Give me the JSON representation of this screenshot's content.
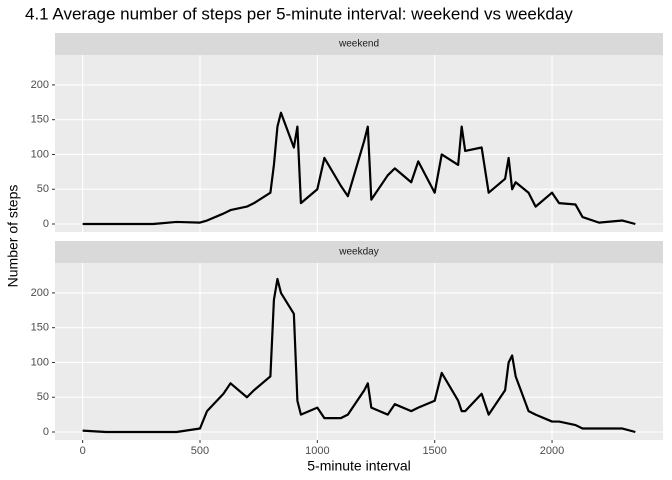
{
  "chart_data": {
    "type": "line",
    "title": "4.1 Average number of steps per 5-minute interval: weekend vs weekday",
    "x_label": "5-minute interval",
    "y_label": "Number of steps",
    "facet": true,
    "grid": true,
    "xlim": [
      -117.75,
      2472.75
    ],
    "xticks": [
      0,
      500,
      1000,
      1500,
      2000
    ],
    "ylim": [
      -11.5,
      243
    ],
    "yticks": [
      0,
      50,
      100,
      150,
      200
    ],
    "x": [
      0,
      100,
      200,
      300,
      400,
      500,
      530,
      600,
      630,
      700,
      730,
      800,
      815,
      830,
      845,
      900,
      915,
      930,
      1000,
      1030,
      1100,
      1130,
      1200,
      1215,
      1230,
      1300,
      1330,
      1400,
      1430,
      1500,
      1530,
      1600,
      1615,
      1630,
      1700,
      1730,
      1800,
      1815,
      1830,
      1845,
      1900,
      1930,
      2000,
      2030,
      2100,
      2130,
      2200,
      2300,
      2355
    ],
    "series": [
      {
        "name": "weekend",
        "color": "#000000",
        "values": [
          0,
          0,
          0,
          0,
          3,
          2,
          5,
          15,
          20,
          25,
          30,
          45,
          85,
          140,
          160,
          110,
          140,
          30,
          50,
          95,
          55,
          40,
          120,
          140,
          35,
          70,
          80,
          60,
          90,
          45,
          100,
          85,
          140,
          105,
          110,
          45,
          65,
          95,
          50,
          60,
          45,
          25,
          45,
          30,
          28,
          10,
          2,
          5,
          0
        ]
      },
      {
        "name": "weekday",
        "color": "#000000",
        "values": [
          2,
          0,
          0,
          0,
          0,
          5,
          30,
          55,
          70,
          50,
          60,
          80,
          190,
          220,
          200,
          170,
          45,
          25,
          35,
          20,
          20,
          25,
          60,
          70,
          35,
          25,
          40,
          30,
          35,
          45,
          85,
          45,
          30,
          30,
          55,
          25,
          60,
          100,
          110,
          80,
          30,
          25,
          15,
          15,
          10,
          5,
          5,
          5,
          0
        ]
      }
    ]
  }
}
